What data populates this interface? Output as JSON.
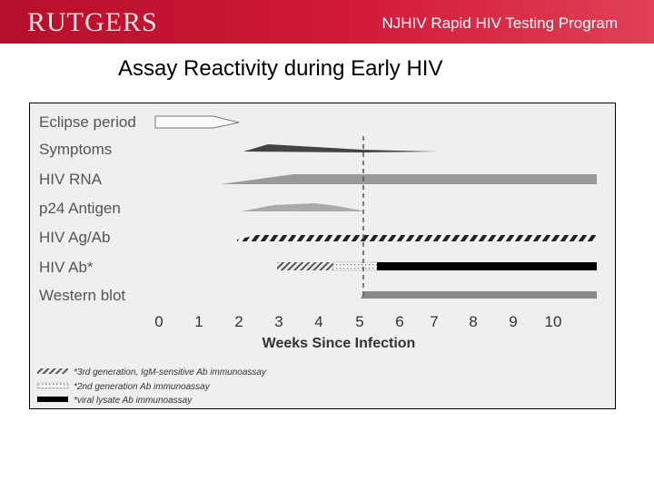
{
  "header": {
    "logo_text": "RUTGERS",
    "program_title": "NJHIV Rapid HIV Testing Program",
    "accent_color": "#c41230"
  },
  "slide": {
    "title": "Assay Reactivity during Early HIV"
  },
  "chart_data": {
    "type": "timeline",
    "rows": [
      {
        "label": "Eclipse period"
      },
      {
        "label": "Symptoms"
      },
      {
        "label": "HIV RNA"
      },
      {
        "label": "p24 Antigen"
      },
      {
        "label": "HIV Ag/Ab"
      },
      {
        "label": "HIV Ab*"
      },
      {
        "label": "Western blot"
      }
    ],
    "x_ticks": [
      "0",
      "1",
      "2",
      "3",
      "4",
      "5",
      "6",
      "7",
      "8",
      "9",
      "10"
    ],
    "xlabel": "Weeks Since Infection",
    "marker_week": 5,
    "legend": [
      {
        "pattern": "hatched",
        "text": "*3rd generation, IgM-sensitive Ab immunoassay"
      },
      {
        "pattern": "dotted",
        "text": "*2nd generation Ab immunoassay"
      },
      {
        "pattern": "solid",
        "text": "*viral lysate Ab immunoassay"
      }
    ]
  }
}
